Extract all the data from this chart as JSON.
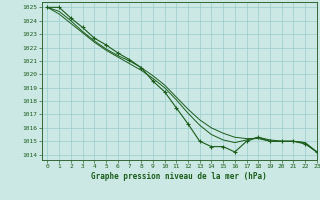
{
  "title": "Graphe pression niveau de la mer (hPa)",
  "bg_color": "#cce8e4",
  "grid_color": "#99cccc",
  "line_color": "#1a5c1a",
  "xlim": [
    -0.5,
    23
  ],
  "ylim": [
    1013.6,
    1025.4
  ],
  "yticks": [
    1014,
    1015,
    1016,
    1017,
    1018,
    1019,
    1020,
    1021,
    1022,
    1023,
    1024,
    1025
  ],
  "xticks": [
    0,
    1,
    2,
    3,
    4,
    5,
    6,
    7,
    8,
    9,
    10,
    11,
    12,
    13,
    14,
    15,
    16,
    17,
    18,
    19,
    20,
    21,
    22,
    23
  ],
  "hours": [
    0,
    1,
    2,
    3,
    4,
    5,
    6,
    7,
    8,
    9,
    10,
    11,
    12,
    13,
    14,
    15,
    16,
    17,
    18,
    19,
    20,
    21,
    22,
    23
  ],
  "series_marker": [
    1025.0,
    1025.0,
    1024.2,
    1023.5,
    1022.7,
    1022.2,
    1021.6,
    1021.1,
    1020.5,
    1019.5,
    1018.7,
    1017.5,
    1016.3,
    1015.0,
    1014.6,
    1014.6,
    1014.2,
    1015.0,
    1015.3,
    1015.0,
    1015.0,
    1015.0,
    1014.8,
    1014.2
  ],
  "series_upper": [
    1025.0,
    1024.7,
    1024.0,
    1023.2,
    1022.5,
    1021.9,
    1021.4,
    1021.0,
    1020.5,
    1019.9,
    1019.2,
    1018.3,
    1017.4,
    1016.6,
    1016.0,
    1015.6,
    1015.3,
    1015.2,
    1015.2,
    1015.0,
    1015.0,
    1015.0,
    1014.9,
    1014.2
  ],
  "series_lower": [
    1025.0,
    1024.5,
    1023.8,
    1023.1,
    1022.4,
    1021.8,
    1021.3,
    1020.8,
    1020.3,
    1019.7,
    1019.0,
    1018.1,
    1017.1,
    1016.2,
    1015.5,
    1015.1,
    1014.9,
    1015.1,
    1015.3,
    1015.1,
    1015.0,
    1015.0,
    1014.9,
    1014.2
  ]
}
